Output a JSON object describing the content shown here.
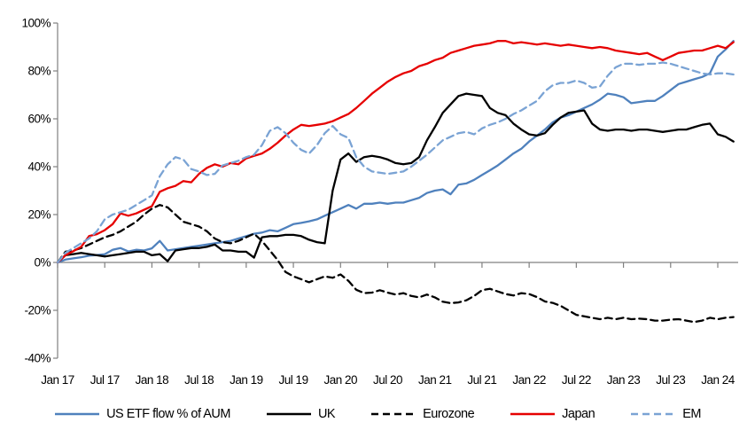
{
  "chart_data": {
    "type": "line",
    "title": "",
    "x_unit": "month",
    "x_start_label": "Jan 17",
    "x_end_label": "Jan 24",
    "x_points_extend_to": "Mar 24",
    "ylim": [
      -40,
      100
    ],
    "y_tick_step": 20,
    "grid": "off",
    "legend_position": "bottom",
    "y_axis_tick_labels": [
      "100%",
      "80%",
      "60%",
      "40%",
      "20%",
      "0%",
      "-20%",
      "-40%"
    ],
    "x_axis_tick_labels": [
      "Jan 17",
      "Jul 17",
      "Jan 18",
      "Jul 18",
      "Jan 19",
      "Jul 19",
      "Jan 20",
      "Jul 20",
      "Jan 21",
      "Jul 21",
      "Jan 22",
      "Jul 22",
      "Jan 23",
      "Jul 23",
      "Jan 24"
    ],
    "axis_color": "#808080",
    "series": [
      {
        "name": "US ETF flow % of AUM",
        "color": "#4f81bd",
        "style": "solid",
        "values": [
          0,
          1.2,
          1.7,
          2.2,
          2.8,
          3.1,
          3.4,
          5.3,
          6,
          4.6,
          5.3,
          5,
          5.9,
          9,
          5,
          5.5,
          6,
          6.5,
          7,
          7.5,
          8,
          8.5,
          9,
          10,
          11,
          12,
          12.5,
          13.5,
          13,
          14.5,
          16,
          16.5,
          17.2,
          18,
          19.5,
          21,
          22.5,
          24,
          22.5,
          24.5,
          24.5,
          25,
          24.5,
          25,
          25,
          26,
          27,
          29,
          30,
          30.5,
          28.5,
          32.5,
          33,
          34.5,
          36.5,
          38.5,
          40.5,
          43,
          45.5,
          47.5,
          50.5,
          53,
          55.5,
          58.5,
          60.5,
          61.5,
          63,
          64.5,
          66,
          68,
          70.5,
          70,
          69,
          66.5,
          67,
          67.5,
          67.5,
          69.5,
          72,
          74.5,
          75.5,
          76.5,
          77.5,
          79,
          86,
          89,
          92.5
        ]
      },
      {
        "name": "UK",
        "color": "#000000",
        "style": "solid",
        "values": [
          0,
          3,
          3.5,
          4,
          3.5,
          3,
          2.5,
          3,
          3.5,
          4,
          4.5,
          4.5,
          3,
          3.5,
          0.5,
          5,
          5.5,
          6,
          6,
          6.5,
          7.5,
          5,
          5,
          4.5,
          4.5,
          2,
          10.5,
          11,
          11,
          11.5,
          11.5,
          11,
          9.5,
          8.5,
          8,
          30,
          43,
          45.5,
          42,
          44,
          44.5,
          44,
          43,
          41.5,
          41,
          41.5,
          44,
          51,
          56.5,
          62.5,
          66,
          69.5,
          70.5,
          70,
          69.5,
          64.5,
          62.5,
          61.5,
          58,
          55.5,
          53.5,
          53,
          54,
          57.5,
          60.5,
          62.5,
          63,
          63.5,
          58,
          55.5,
          55,
          55.5,
          55.5,
          55,
          55.5,
          55.5,
          55,
          54.5,
          55,
          55.5,
          55.5,
          56.5,
          57.5,
          58,
          53.5,
          52.5,
          50.5
        ]
      },
      {
        "name": "Eurozone",
        "color": "#000000",
        "style": "dashed",
        "values": [
          0,
          4.5,
          5,
          6,
          7.5,
          9,
          10.5,
          11.5,
          13,
          15,
          17,
          20,
          22.5,
          24,
          23,
          20,
          17,
          16,
          15,
          13,
          10,
          8.5,
          8,
          9,
          10.5,
          12,
          9,
          5,
          1,
          -4,
          -5.8,
          -7,
          -8.3,
          -7,
          -5.8,
          -6.4,
          -5,
          -7.7,
          -11.4,
          -12.8,
          -12.6,
          -11.6,
          -12.6,
          -13.4,
          -12.8,
          -14,
          -14.6,
          -13.4,
          -14.6,
          -16.4,
          -17,
          -16.7,
          -15.8,
          -14,
          -11.6,
          -11,
          -12.1,
          -13.2,
          -13.8,
          -12.8,
          -13.2,
          -14.5,
          -16.3,
          -16.9,
          -18.1,
          -20,
          -21.9,
          -22.5,
          -23.1,
          -23.7,
          -23.1,
          -23.7,
          -23.1,
          -23.7,
          -23.5,
          -23.7,
          -24.3,
          -24.3,
          -23.9,
          -23.7,
          -24.3,
          -24.9,
          -24.3,
          -23.1,
          -23.7,
          -23.1,
          -22.8
        ]
      },
      {
        "name": "Japan",
        "color": "#e60000",
        "style": "solid",
        "values": [
          0,
          3,
          4.7,
          6.5,
          11,
          11.8,
          13.5,
          16,
          20.5,
          19.5,
          20.5,
          22,
          23.5,
          29.5,
          31,
          32,
          34,
          33.5,
          37,
          39.5,
          41,
          40,
          41.5,
          41,
          43.5,
          44.5,
          45.5,
          47.5,
          50,
          53,
          55.5,
          57.5,
          57,
          57.5,
          58,
          59,
          60.5,
          62,
          64.5,
          67.5,
          70.5,
          73,
          75.5,
          77.5,
          79,
          80,
          82,
          83,
          84.5,
          85.5,
          87.5,
          88.5,
          89.5,
          90.5,
          91,
          91.5,
          92.5,
          92.5,
          91.5,
          92,
          91.5,
          91,
          91.5,
          91,
          90.5,
          91,
          90.5,
          90,
          89.5,
          90,
          89.5,
          88.5,
          88,
          87.5,
          87,
          87.5,
          86,
          84.5,
          86,
          87.5,
          88,
          88.5,
          88.5,
          89.5,
          90.5,
          89.5,
          92
        ]
      },
      {
        "name": "EM",
        "color": "#7aa3d4",
        "style": "dashed",
        "values": [
          0,
          4,
          6,
          8,
          10,
          13,
          18,
          20,
          21,
          22,
          24,
          26,
          28,
          36,
          41,
          44,
          43,
          39,
          38,
          36.5,
          37,
          40.5,
          41.5,
          42.5,
          44,
          45,
          49,
          55,
          56.5,
          54,
          50,
          47,
          45.5,
          49,
          54,
          57,
          53.5,
          52,
          44,
          40,
          38,
          37.5,
          37,
          37.5,
          38,
          40,
          42.5,
          45,
          48,
          51,
          52.5,
          54,
          54.5,
          53.5,
          56,
          57.5,
          58.5,
          60,
          62,
          63.5,
          65.5,
          67.5,
          71.5,
          74,
          75,
          75,
          76,
          75,
          73,
          73.5,
          78,
          81.5,
          83,
          83,
          82.5,
          83,
          83,
          83.5,
          83,
          82,
          81,
          80,
          79,
          78.5,
          79,
          79,
          78.5
        ]
      }
    ]
  }
}
